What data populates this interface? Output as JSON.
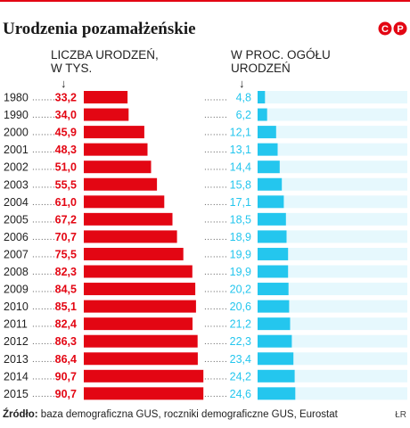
{
  "title": "Urodzenia pozamałżeńskie",
  "logo_text": "©P",
  "brand_color": "#e30613",
  "share_color": "#24c6ee",
  "share_bg_color": "#e6f8fd",
  "header_left": [
    "LICZBA URODZEŃ,",
    "W TYS."
  ],
  "header_right": [
    "W PROC. OGÓŁU",
    "URODZEŃ"
  ],
  "arrow_glyph": "↓",
  "footer_label": "Źródło:",
  "footer_text": " baza demograficzna GUS, roczniki demograficzne GUS, Eurostat",
  "credit": "ŁR",
  "chart_data": {
    "type": "bar",
    "categories": [
      "1980",
      "1990",
      "2000",
      "2001",
      "2002",
      "2003",
      "2004",
      "2005",
      "2006",
      "2007",
      "2008",
      "2009",
      "2010",
      "2011",
      "2012",
      "2013",
      "2014",
      "2015"
    ],
    "series": [
      {
        "name": "LICZBA URODZEŃ, W TYS.",
        "values": [
          33.2,
          34.0,
          45.9,
          48.3,
          51.0,
          55.5,
          61.0,
          67.2,
          70.7,
          75.5,
          82.3,
          84.5,
          85.1,
          82.4,
          86.3,
          86.4,
          90.7,
          90.7
        ],
        "labels": [
          "33,2",
          "34,0",
          "45,9",
          "48,3",
          "51,0",
          "55,5",
          "61,0",
          "67,2",
          "70,7",
          "75,5",
          "82,3",
          "84,5",
          "85,1",
          "82,4",
          "86,3",
          "86,4",
          "90,7",
          "90,7"
        ]
      },
      {
        "name": "W PROC. OGÓŁU URODZEŃ",
        "values": [
          4.8,
          6.2,
          12.1,
          13.1,
          14.4,
          15.8,
          17.1,
          18.5,
          18.9,
          19.9,
          19.9,
          20.2,
          20.6,
          21.2,
          22.3,
          23.4,
          24.2,
          24.6
        ],
        "labels": [
          "4,8",
          "6,2",
          "12,1",
          "13,1",
          "14,4",
          "15,8",
          "17,1",
          "18,5",
          "18,9",
          "19,9",
          "19,9",
          "20,2",
          "20,6",
          "21,2",
          "22,3",
          "23,4",
          "24,2",
          "24,6"
        ]
      }
    ],
    "leader": "........"
  }
}
